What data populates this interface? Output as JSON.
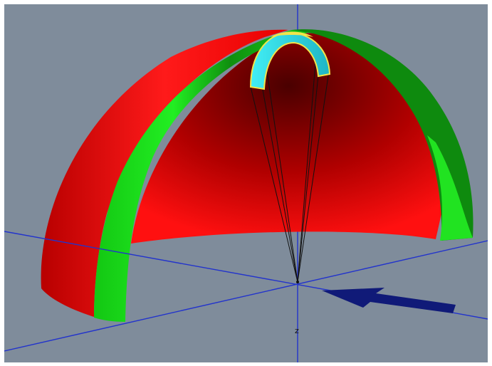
{
  "viewport": {
    "z_axis_label": "z"
  },
  "colors": {
    "background": "#7f8c9b",
    "canopy_outer": "#e00000",
    "canopy_inner_dark": "#5a0000",
    "band_green": "#1fe61f",
    "band_green_dark": "#0a6e0a",
    "wing_cyan": "#35e4ee",
    "wing_outline": "#f2e44a",
    "axis_blue": "#2233cc",
    "arrow_navy": "#101a78",
    "lines": "#111111"
  }
}
